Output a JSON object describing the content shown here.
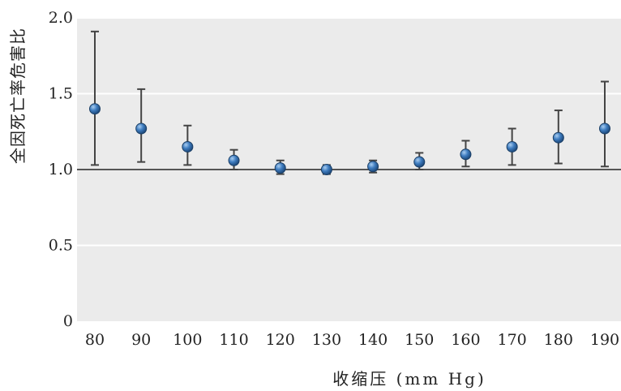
{
  "chart_data": {
    "type": "scatter",
    "xlabel": "收缩压 (mm Hg)",
    "ylabel": "全因死亡率危害比",
    "ylim": [
      0,
      2.0
    ],
    "y_ticks": [
      "0",
      "0.5",
      "1.0",
      "1.5",
      "2.0"
    ],
    "x_ticks": [
      "80",
      "90",
      "100",
      "110",
      "120",
      "130",
      "140",
      "150",
      "160",
      "170",
      "180",
      "190"
    ],
    "reference_line": 1.0,
    "grid": "horizontal",
    "colors": {
      "background": "#ebebeb",
      "grid": "#ffffff",
      "point": "#2e6aa8",
      "error_bar": "#444444",
      "reference_line": "#555555"
    },
    "points": [
      {
        "x": 80,
        "y": 1.4,
        "lower": 1.03,
        "upper": 1.91
      },
      {
        "x": 90,
        "y": 1.27,
        "lower": 1.05,
        "upper": 1.53
      },
      {
        "x": 100,
        "y": 1.15,
        "lower": 1.03,
        "upper": 1.29
      },
      {
        "x": 110,
        "y": 1.06,
        "lower": 1.0,
        "upper": 1.13
      },
      {
        "x": 120,
        "y": 1.01,
        "lower": 0.97,
        "upper": 1.06
      },
      {
        "x": 130,
        "y": 1.0,
        "lower": 0.97,
        "upper": 1.03
      },
      {
        "x": 140,
        "y": 1.02,
        "lower": 0.98,
        "upper": 1.06
      },
      {
        "x": 150,
        "y": 1.05,
        "lower": 1.0,
        "upper": 1.11
      },
      {
        "x": 160,
        "y": 1.1,
        "lower": 1.02,
        "upper": 1.19
      },
      {
        "x": 170,
        "y": 1.15,
        "lower": 1.03,
        "upper": 1.27
      },
      {
        "x": 180,
        "y": 1.21,
        "lower": 1.04,
        "upper": 1.39
      },
      {
        "x": 190,
        "y": 1.27,
        "lower": 1.02,
        "upper": 1.58
      }
    ]
  }
}
